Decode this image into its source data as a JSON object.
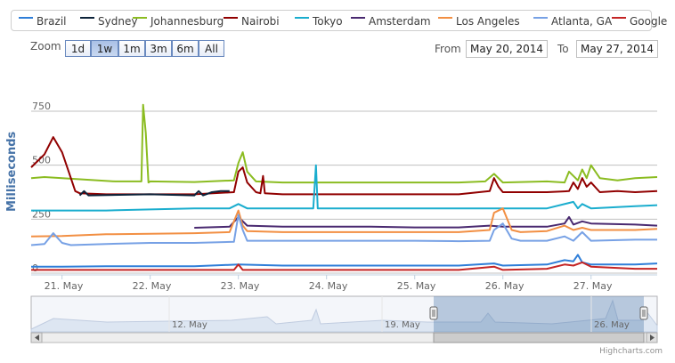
{
  "legend": [
    {
      "name": "Brazil",
      "color": "#2f7ed8"
    },
    {
      "name": "Sydney",
      "color": "#0d233a"
    },
    {
      "name": "Johannesburg",
      "color": "#8bbc21"
    },
    {
      "name": "Nairobi",
      "color": "#910000"
    },
    {
      "name": "Tokyo",
      "color": "#1aadce"
    },
    {
      "name": "Amsterdam",
      "color": "#492970"
    },
    {
      "name": "Los Angeles",
      "color": "#f28f43"
    },
    {
      "name": "Atlanta, GA",
      "color": "#77a1e5"
    },
    {
      "name": "Google",
      "color": "#c42525"
    }
  ],
  "rangeSelector": {
    "zoom_label": "Zoom",
    "buttons": [
      "1d",
      "1w",
      "1m",
      "3m",
      "6m",
      "All"
    ],
    "selected": "1w",
    "from_label": "From",
    "from_value": "May 20, 2014",
    "to_label": "To",
    "to_value": "May 27, 2014"
  },
  "navigator": {
    "labels": [
      "12. May",
      "19. May",
      "26. May"
    ]
  },
  "credits": "Highcharts.com",
  "chart_data": {
    "type": "line",
    "ylabel": "Milliseconds",
    "yticks": [
      0,
      250,
      500,
      750
    ],
    "ylim": [
      0,
      750
    ],
    "xticks": [
      "21. May",
      "22. May",
      "23. May",
      "24. May",
      "25. May",
      "26. May",
      "27. May"
    ],
    "xlim": [
      20.65,
      27.75
    ],
    "grid": true,
    "legend_position": "top",
    "series": [
      {
        "name": "Johannesburg",
        "color": "#8bbc21",
        "x": [
          20.65,
          20.8,
          21.6,
          21.9,
          21.92,
          21.95,
          21.98,
          22.0,
          22.5,
          22.95,
          23.0,
          23.05,
          23.1,
          23.2,
          23.5,
          24.0,
          24.5,
          25.0,
          25.5,
          25.8,
          25.9,
          26.0,
          26.5,
          26.7,
          26.75,
          26.85,
          26.9,
          26.95,
          27.0,
          27.1,
          27.3,
          27.5,
          27.75
        ],
        "values": [
          440,
          445,
          425,
          425,
          780,
          650,
          420,
          425,
          422,
          430,
          510,
          560,
          470,
          425,
          420,
          420,
          420,
          420,
          420,
          425,
          460,
          420,
          425,
          420,
          470,
          430,
          480,
          440,
          500,
          440,
          430,
          440,
          445
        ]
      },
      {
        "name": "Nairobi",
        "color": "#910000",
        "x": [
          20.65,
          20.8,
          20.9,
          21.0,
          21.1,
          21.15,
          21.2,
          21.5,
          22.0,
          22.5,
          22.95,
          23.0,
          23.05,
          23.1,
          23.2,
          23.25,
          23.28,
          23.3,
          23.5,
          24.0,
          24.5,
          25.0,
          25.5,
          25.85,
          25.9,
          25.95,
          26.0,
          26.5,
          26.75,
          26.8,
          26.85,
          26.9,
          26.95,
          27.0,
          27.1,
          27.3,
          27.5,
          27.75
        ],
        "values": [
          490,
          550,
          630,
          560,
          440,
          380,
          370,
          365,
          365,
          365,
          375,
          470,
          490,
          420,
          375,
          370,
          450,
          370,
          365,
          365,
          365,
          365,
          365,
          380,
          440,
          400,
          375,
          375,
          380,
          420,
          390,
          440,
          400,
          420,
          375,
          380,
          375,
          380
        ]
      },
      {
        "name": "Tokyo",
        "color": "#1aadce",
        "x": [
          20.65,
          21.0,
          21.5,
          22.0,
          22.5,
          22.9,
          23.0,
          23.1,
          23.5,
          23.85,
          23.88,
          23.9,
          24.0,
          24.5,
          25.0,
          25.5,
          26.0,
          26.5,
          26.8,
          26.85,
          26.9,
          27.0,
          27.5,
          27.75
        ],
        "values": [
          290,
          290,
          290,
          295,
          300,
          300,
          320,
          300,
          300,
          300,
          500,
          300,
          300,
          300,
          300,
          300,
          300,
          300,
          330,
          300,
          320,
          300,
          310,
          315
        ]
      },
      {
        "name": "Amsterdam",
        "color": "#492970",
        "x": [
          22.5,
          22.9,
          23.0,
          23.1,
          23.5,
          24.0,
          24.5,
          25.0,
          25.5,
          25.85,
          26.0,
          26.5,
          26.7,
          26.75,
          26.8,
          26.9,
          27.0,
          27.5,
          27.75
        ],
        "values": [
          210,
          215,
          260,
          220,
          215,
          215,
          215,
          212,
          212,
          220,
          215,
          215,
          230,
          260,
          225,
          240,
          230,
          225,
          220
        ]
      },
      {
        "name": "Los Angeles",
        "color": "#f28f43",
        "x": [
          20.65,
          21.0,
          21.5,
          22.0,
          22.5,
          22.9,
          23.0,
          23.05,
          23.1,
          23.5,
          24.0,
          24.5,
          25.0,
          25.5,
          25.85,
          25.9,
          26.0,
          26.1,
          26.2,
          26.5,
          26.7,
          26.8,
          26.9,
          27.0,
          27.5,
          27.75
        ],
        "values": [
          170,
          172,
          180,
          182,
          185,
          190,
          290,
          220,
          195,
          190,
          190,
          190,
          190,
          190,
          200,
          280,
          300,
          200,
          190,
          195,
          220,
          200,
          210,
          200,
          200,
          205
        ]
      },
      {
        "name": "Atlanta, GA",
        "color": "#77a1e5",
        "x": [
          20.65,
          20.8,
          20.9,
          21.0,
          21.1,
          21.5,
          22.0,
          22.5,
          22.95,
          23.0,
          23.05,
          23.1,
          23.5,
          24.0,
          24.5,
          25.0,
          25.5,
          25.85,
          25.9,
          26.0,
          26.1,
          26.2,
          26.5,
          26.7,
          26.8,
          26.9,
          27.0,
          27.5,
          27.75
        ],
        "values": [
          130,
          135,
          185,
          140,
          130,
          135,
          140,
          140,
          145,
          270,
          200,
          150,
          150,
          150,
          150,
          150,
          148,
          150,
          200,
          230,
          160,
          150,
          150,
          170,
          150,
          190,
          150,
          155,
          155
        ]
      },
      {
        "name": "Sydney",
        "color": "#0d233a",
        "x": [
          21.2,
          21.25,
          21.3,
          22.0,
          22.5,
          22.55,
          22.6,
          22.7,
          22.8,
          22.9
        ],
        "values": [
          360,
          380,
          360,
          365,
          360,
          380,
          360,
          375,
          380,
          380
        ]
      },
      {
        "name": "Brazil",
        "color": "#2f7ed8",
        "x": [
          20.65,
          21.0,
          21.5,
          22.0,
          22.5,
          23.0,
          23.5,
          24.0,
          24.5,
          25.0,
          25.5,
          25.9,
          26.0,
          26.5,
          26.7,
          26.8,
          26.85,
          26.9,
          27.0,
          27.5,
          27.75
        ],
        "values": [
          30,
          30,
          32,
          32,
          32,
          40,
          35,
          35,
          35,
          35,
          35,
          45,
          35,
          40,
          60,
          55,
          85,
          50,
          40,
          40,
          45
        ]
      },
      {
        "name": "Google",
        "color": "#c42525",
        "x": [
          20.65,
          21.0,
          21.5,
          22.0,
          22.5,
          22.95,
          23.0,
          23.05,
          23.5,
          24.0,
          24.5,
          25.0,
          25.5,
          25.9,
          26.0,
          26.5,
          26.7,
          26.8,
          26.9,
          27.0,
          27.5,
          27.75
        ],
        "values": [
          15,
          15,
          15,
          15,
          15,
          15,
          40,
          15,
          15,
          15,
          15,
          15,
          15,
          30,
          15,
          20,
          40,
          35,
          50,
          30,
          20,
          20
        ]
      }
    ]
  }
}
